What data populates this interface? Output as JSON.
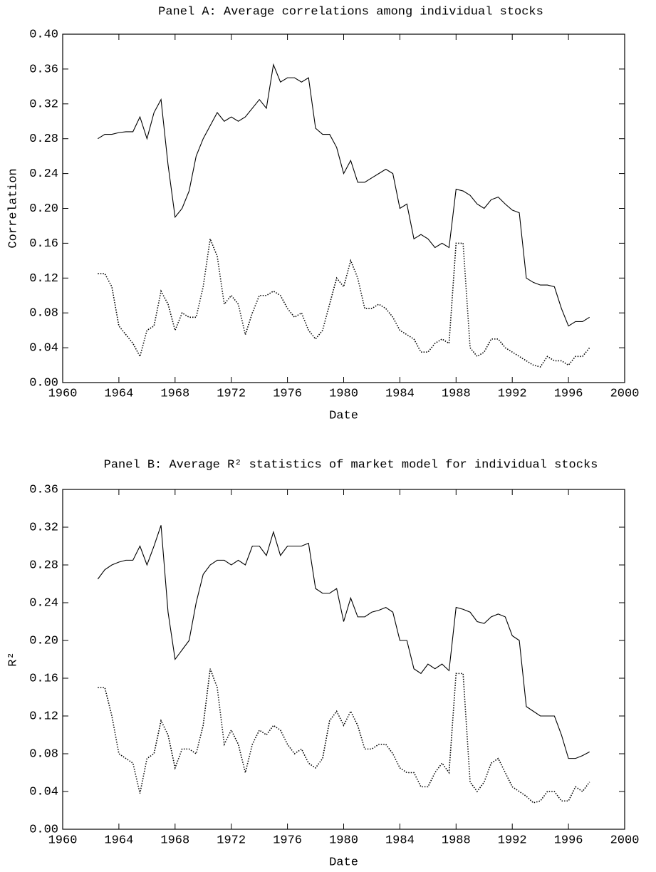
{
  "chart_data": [
    {
      "type": "line",
      "title": "Panel A: Average correlations among individual stocks",
      "xlabel": "Date",
      "ylabel": "Correlation",
      "xlim": [
        1960,
        2000
      ],
      "xticks": [
        1960,
        1964,
        1968,
        1972,
        1976,
        1980,
        1984,
        1988,
        1992,
        1996,
        2000
      ],
      "ylim": [
        0,
        0.4
      ],
      "yticks": [
        {
          "value": 0,
          "label": "0.00"
        },
        0.04,
        0.08,
        0.12,
        0.16,
        {
          "value": 0.2,
          "label": "0.20"
        },
        0.24,
        0.28,
        0.32,
        0.36,
        {
          "value": 0.4,
          "label": "0.40"
        }
      ],
      "x": [
        1962.5,
        1963,
        1963.5,
        1964,
        1964.5,
        1965,
        1965.5,
        1966,
        1966.5,
        1967,
        1967.5,
        1968,
        1968.5,
        1969,
        1969.5,
        1970,
        1970.5,
        1971,
        1971.5,
        1972,
        1972.5,
        1973,
        1973.5,
        1974,
        1974.5,
        1975,
        1975.5,
        1976,
        1976.5,
        1977,
        1977.5,
        1978,
        1978.5,
        1979,
        1979.5,
        1980,
        1980.5,
        1981,
        1981.5,
        1982,
        1982.5,
        1983,
        1983.5,
        1984,
        1984.5,
        1985,
        1985.5,
        1986,
        1986.5,
        1987,
        1987.5,
        1988,
        1988.5,
        1989,
        1989.5,
        1990,
        1990.5,
        1991,
        1991.5,
        1992,
        1992.5,
        1993,
        1993.5,
        1994,
        1994.5,
        1995,
        1995.5,
        1996,
        1996.5,
        1997,
        1997.5
      ],
      "series": [
        {
          "color": "#000000",
          "style": "solid",
          "values": [
            0.28,
            0.285,
            0.285,
            0.287,
            0.288,
            0.288,
            0.305,
            0.28,
            0.31,
            0.325,
            0.25,
            0.19,
            0.2,
            0.22,
            0.26,
            0.28,
            0.295,
            0.31,
            0.3,
            0.305,
            0.3,
            0.305,
            0.315,
            0.325,
            0.315,
            0.365,
            0.345,
            0.35,
            0.35,
            0.345,
            0.35,
            0.292,
            0.285,
            0.285,
            0.27,
            0.24,
            0.255,
            0.23,
            0.23,
            0.235,
            0.24,
            0.245,
            0.24,
            0.2,
            0.205,
            0.165,
            0.17,
            0.165,
            0.155,
            0.16,
            0.155,
            0.222,
            0.22,
            0.215,
            0.205,
            0.2,
            0.21,
            0.213,
            0.205,
            0.198,
            0.195,
            0.12,
            0.115,
            0.112,
            0.112,
            0.11,
            0.085,
            0.065,
            0.07,
            0.07,
            0.075
          ]
        },
        {
          "color": "#000000",
          "style": "dotted",
          "values": [
            0.125,
            0.125,
            0.11,
            0.065,
            0.055,
            0.045,
            0.03,
            0.06,
            0.065,
            0.105,
            0.09,
            0.06,
            0.08,
            0.075,
            0.075,
            0.11,
            0.165,
            0.145,
            0.09,
            0.1,
            0.09,
            0.055,
            0.08,
            0.1,
            0.1,
            0.105,
            0.1,
            0.085,
            0.075,
            0.08,
            0.06,
            0.05,
            0.06,
            0.09,
            0.12,
            0.11,
            0.14,
            0.12,
            0.085,
            0.085,
            0.09,
            0.085,
            0.075,
            0.06,
            0.055,
            0.05,
            0.035,
            0.035,
            0.045,
            0.05,
            0.045,
            0.16,
            0.16,
            0.04,
            0.03,
            0.035,
            0.05,
            0.05,
            0.04,
            0.035,
            0.03,
            0.025,
            0.02,
            0.018,
            0.03,
            0.025,
            0.025,
            0.02,
            0.03,
            0.03,
            0.04
          ]
        }
      ]
    },
    {
      "type": "line",
      "title": "Panel B: Average R² statistics of market model for individual stocks",
      "xlabel": "Date",
      "ylabel": "R²",
      "xlim": [
        1960,
        2000
      ],
      "xticks": [
        1960,
        1964,
        1968,
        1972,
        1976,
        1980,
        1984,
        1988,
        1992,
        1996,
        2000
      ],
      "ylim": [
        0,
        0.36
      ],
      "yticks": [
        {
          "value": 0,
          "label": "0.00"
        },
        0.04,
        0.08,
        0.12,
        0.16,
        {
          "value": 0.2,
          "label": "0.20"
        },
        0.24,
        0.28,
        0.32,
        0.36
      ],
      "x": [
        1962.5,
        1963,
        1963.5,
        1964,
        1964.5,
        1965,
        1965.5,
        1966,
        1966.5,
        1967,
        1967.5,
        1968,
        1968.5,
        1969,
        1969.5,
        1970,
        1970.5,
        1971,
        1971.5,
        1972,
        1972.5,
        1973,
        1973.5,
        1974,
        1974.5,
        1975,
        1975.5,
        1976,
        1976.5,
        1977,
        1977.5,
        1978,
        1978.5,
        1979,
        1979.5,
        1980,
        1980.5,
        1981,
        1981.5,
        1982,
        1982.5,
        1983,
        1983.5,
        1984,
        1984.5,
        1985,
        1985.5,
        1986,
        1986.5,
        1987,
        1987.5,
        1988,
        1988.5,
        1989,
        1989.5,
        1990,
        1990.5,
        1991,
        1991.5,
        1992,
        1992.5,
        1993,
        1993.5,
        1994,
        1994.5,
        1995,
        1995.5,
        1996,
        1996.5,
        1997,
        1997.5
      ],
      "series": [
        {
          "color": "#000000",
          "style": "solid",
          "values": [
            0.265,
            0.275,
            0.28,
            0.283,
            0.285,
            0.285,
            0.3,
            0.28,
            0.3,
            0.322,
            0.23,
            0.18,
            0.19,
            0.2,
            0.24,
            0.27,
            0.28,
            0.285,
            0.285,
            0.28,
            0.285,
            0.28,
            0.3,
            0.3,
            0.29,
            0.315,
            0.29,
            0.3,
            0.3,
            0.3,
            0.303,
            0.255,
            0.25,
            0.25,
            0.255,
            0.22,
            0.245,
            0.225,
            0.225,
            0.23,
            0.232,
            0.235,
            0.23,
            0.2,
            0.2,
            0.17,
            0.165,
            0.175,
            0.17,
            0.175,
            0.168,
            0.235,
            0.233,
            0.23,
            0.22,
            0.218,
            0.225,
            0.228,
            0.225,
            0.205,
            0.2,
            0.13,
            0.125,
            0.12,
            0.12,
            0.12,
            0.1,
            0.075,
            0.075,
            0.078,
            0.082
          ]
        },
        {
          "color": "#000000",
          "style": "dotted",
          "values": [
            0.15,
            0.15,
            0.12,
            0.08,
            0.075,
            0.07,
            0.038,
            0.075,
            0.08,
            0.115,
            0.1,
            0.065,
            0.085,
            0.085,
            0.08,
            0.11,
            0.17,
            0.15,
            0.09,
            0.105,
            0.09,
            0.06,
            0.09,
            0.105,
            0.1,
            0.11,
            0.105,
            0.09,
            0.08,
            0.085,
            0.07,
            0.065,
            0.075,
            0.115,
            0.125,
            0.11,
            0.125,
            0.11,
            0.085,
            0.085,
            0.09,
            0.09,
            0.08,
            0.065,
            0.06,
            0.06,
            0.045,
            0.045,
            0.06,
            0.07,
            0.06,
            0.165,
            0.165,
            0.05,
            0.04,
            0.05,
            0.07,
            0.075,
            0.06,
            0.045,
            0.04,
            0.035,
            0.028,
            0.03,
            0.04,
            0.04,
            0.03,
            0.03,
            0.045,
            0.04,
            0.05
          ]
        }
      ]
    }
  ]
}
